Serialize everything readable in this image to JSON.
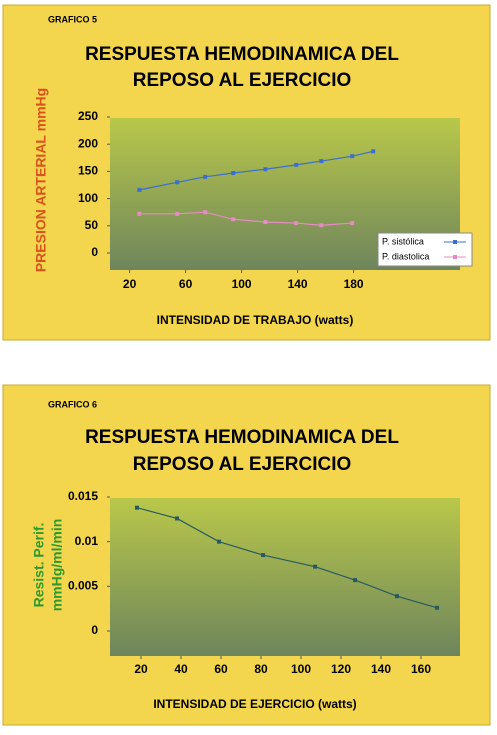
{
  "chart_data": [
    {
      "type": "line",
      "panel_label": "GRAFICO 5",
      "title": [
        "RESPUESTA HEMODINAMICA DEL",
        "REPOSO AL EJERCICIO"
      ],
      "ylabel": [
        "PRESION ARTERIAL mmHg"
      ],
      "xlabel": "INTENSIDAD DE TRABAJO (watts)",
      "x": [
        27,
        54,
        74,
        94,
        117,
        139,
        157,
        179,
        194
      ],
      "series": [
        {
          "name": "P. sistólica",
          "color": "#3a6fd0",
          "values": [
            116,
            130,
            140,
            147,
            154,
            162,
            169,
            178,
            187
          ]
        },
        {
          "name": "P. diastolica",
          "color": "#e58cc4",
          "values": [
            72,
            72,
            75,
            62,
            57,
            55,
            51,
            55,
            null
          ]
        }
      ],
      "xlim": [
        6,
        256
      ],
      "xticks": [
        20,
        60,
        100,
        140,
        180
      ],
      "ylim": [
        0,
        250
      ],
      "yticks": [
        0,
        50,
        100,
        150,
        200,
        250
      ],
      "legend": "lower right",
      "ylabel_color": "#d9531e"
    },
    {
      "type": "line",
      "panel_label": "GRAFICO 6",
      "title": [
        "RESPUESTA HEMODINAMICA DEL",
        "REPOSO AL EJERCICIO"
      ],
      "ylabel": [
        "Resist. Perif.",
        "mmHg/ml/min"
      ],
      "xlabel": "INTENSIDAD DE EJERCICIO (watts)",
      "x": [
        18,
        38,
        59,
        81,
        107,
        127,
        148,
        168
      ],
      "series": [
        {
          "color": "#2a5a60",
          "values": [
            0.0138,
            0.0126,
            0.01,
            0.0085,
            0.0072,
            0.0057,
            0.0039,
            0.0026
          ]
        }
      ],
      "xlim": [
        4.5,
        179.5
      ],
      "xticks": [
        20,
        40,
        60,
        80,
        100,
        120,
        140,
        160
      ],
      "ylim": [
        0,
        0.015
      ],
      "yticks": [
        0,
        0.005,
        0.01,
        0.015
      ],
      "ylabel_color": "#2e9a2e"
    }
  ]
}
